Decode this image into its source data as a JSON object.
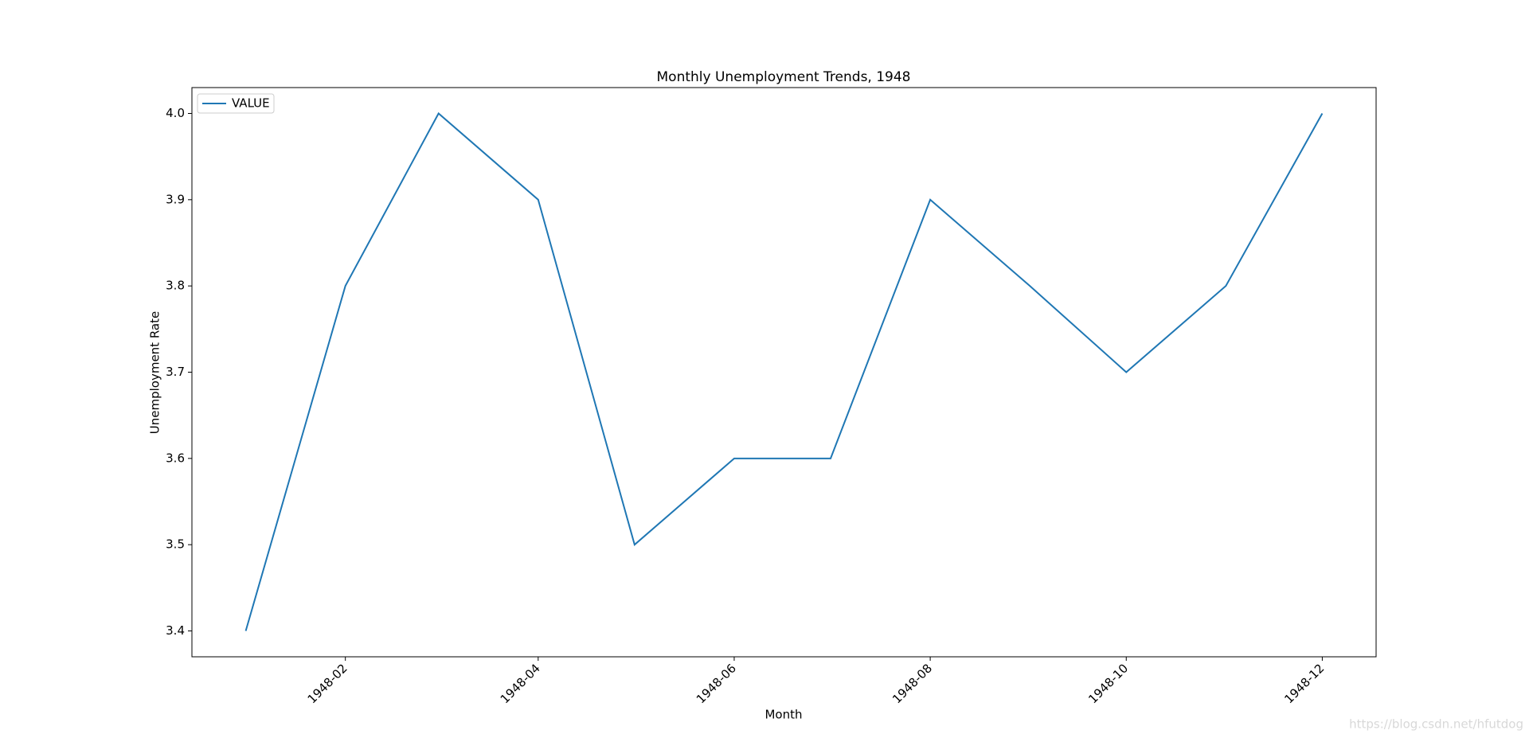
{
  "chart_data": {
    "type": "line",
    "title": "Monthly Unemployment Trends, 1948",
    "x_label": "Month",
    "y_label": "Unemployment Rate",
    "x": [
      "1948-01",
      "1948-02",
      "1948-03",
      "1948-04",
      "1948-05",
      "1948-06",
      "1948-07",
      "1948-08",
      "1948-09",
      "1948-10",
      "1948-11",
      "1948-12"
    ],
    "series": [
      {
        "name": "VALUE",
        "color": "#1f77b4",
        "values": [
          3.4,
          3.8,
          4.0,
          3.9,
          3.5,
          3.6,
          3.6,
          3.9,
          3.8,
          3.7,
          3.8,
          4.0
        ]
      }
    ],
    "xticks": [
      "1948-02",
      "1948-04",
      "1948-06",
      "1948-08",
      "1948-10",
      "1948-12"
    ],
    "ylim": [
      3.37,
      4.03
    ],
    "yticks": [
      3.4,
      3.5,
      3.6,
      3.7,
      3.8,
      3.9,
      {
        "value": 4.0,
        "label": "4.0"
      }
    ],
    "legend": "upper left",
    "watermark": "https://blog.csdn.net/hfutdog"
  }
}
